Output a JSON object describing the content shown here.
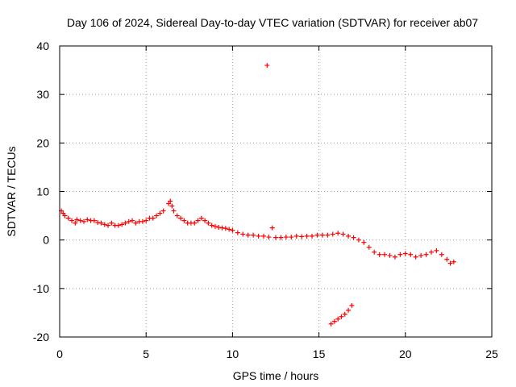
{
  "chart_data": {
    "type": "scatter",
    "title": "Day 106 of 2024, Sidereal Day-to-day VTEC variation (SDTVAR) for receiver ab07",
    "xlabel": "GPS time / hours",
    "ylabel": "SDTVAR / TECUs",
    "xlim": [
      0,
      25
    ],
    "ylim": [
      -20,
      40
    ],
    "x_ticks": [
      0,
      5,
      10,
      15,
      20,
      25
    ],
    "y_ticks": [
      -20,
      -10,
      0,
      10,
      20,
      30,
      40
    ],
    "grid": true,
    "legend": "none",
    "marker": "+",
    "series": [
      {
        "name": "SDTVAR",
        "color": "#ff0000",
        "points": [
          [
            0.1,
            6.0
          ],
          [
            0.2,
            5.5
          ],
          [
            0.3,
            5.0
          ],
          [
            0.5,
            4.5
          ],
          [
            0.7,
            4.0
          ],
          [
            0.9,
            3.5
          ],
          [
            1.0,
            4.2
          ],
          [
            1.2,
            4.0
          ],
          [
            1.4,
            3.8
          ],
          [
            1.6,
            4.2
          ],
          [
            1.8,
            4.0
          ],
          [
            2.0,
            4.0
          ],
          [
            2.2,
            3.6
          ],
          [
            2.4,
            3.5
          ],
          [
            2.6,
            3.2
          ],
          [
            2.8,
            3.0
          ],
          [
            3.0,
            3.5
          ],
          [
            3.2,
            3.0
          ],
          [
            3.4,
            3.0
          ],
          [
            3.6,
            3.2
          ],
          [
            3.8,
            3.5
          ],
          [
            4.0,
            3.8
          ],
          [
            4.2,
            4.0
          ],
          [
            4.4,
            3.5
          ],
          [
            4.6,
            3.8
          ],
          [
            4.8,
            3.8
          ],
          [
            5.0,
            4.0
          ],
          [
            5.2,
            4.5
          ],
          [
            5.4,
            4.5
          ],
          [
            5.6,
            5.0
          ],
          [
            5.8,
            5.5
          ],
          [
            6.0,
            6.0
          ],
          [
            6.3,
            7.5
          ],
          [
            6.4,
            8.0
          ],
          [
            6.5,
            7.0
          ],
          [
            6.6,
            6.0
          ],
          [
            6.8,
            5.0
          ],
          [
            7.0,
            4.5
          ],
          [
            7.2,
            4.0
          ],
          [
            7.4,
            3.5
          ],
          [
            7.6,
            3.5
          ],
          [
            7.8,
            3.5
          ],
          [
            8.0,
            4.0
          ],
          [
            8.2,
            4.5
          ],
          [
            8.4,
            4.0
          ],
          [
            8.6,
            3.5
          ],
          [
            8.8,
            3.0
          ],
          [
            9.0,
            2.8
          ],
          [
            9.2,
            2.6
          ],
          [
            9.4,
            2.5
          ],
          [
            9.6,
            2.4
          ],
          [
            9.8,
            2.2
          ],
          [
            10.0,
            2.0
          ],
          [
            10.3,
            1.5
          ],
          [
            10.6,
            1.2
          ],
          [
            10.9,
            1.0
          ],
          [
            11.2,
            1.0
          ],
          [
            11.5,
            0.8
          ],
          [
            11.8,
            0.8
          ],
          [
            12.0,
            36.0
          ],
          [
            12.1,
            0.6
          ],
          [
            12.3,
            2.5
          ],
          [
            12.5,
            0.5
          ],
          [
            12.8,
            0.5
          ],
          [
            13.1,
            0.6
          ],
          [
            13.4,
            0.6
          ],
          [
            13.7,
            0.8
          ],
          [
            14.0,
            0.7
          ],
          [
            14.3,
            0.8
          ],
          [
            14.6,
            0.8
          ],
          [
            14.9,
            1.0
          ],
          [
            15.2,
            1.0
          ],
          [
            15.5,
            1.0
          ],
          [
            15.8,
            1.2
          ],
          [
            16.1,
            1.4
          ],
          [
            16.4,
            1.2
          ],
          [
            16.7,
            0.8
          ],
          [
            17.0,
            0.5
          ],
          [
            17.3,
            0.0
          ],
          [
            17.6,
            -0.5
          ],
          [
            17.9,
            -1.5
          ],
          [
            18.2,
            -2.5
          ],
          [
            18.5,
            -3.0
          ],
          [
            18.8,
            -3.0
          ],
          [
            19.1,
            -3.2
          ],
          [
            19.4,
            -3.5
          ],
          [
            19.7,
            -3.0
          ],
          [
            20.0,
            -2.8
          ],
          [
            20.3,
            -3.0
          ],
          [
            20.6,
            -3.5
          ],
          [
            20.9,
            -3.2
          ],
          [
            21.2,
            -3.0
          ],
          [
            21.5,
            -2.5
          ],
          [
            21.8,
            -2.2
          ],
          [
            22.1,
            -3.0
          ],
          [
            22.4,
            -4.0
          ],
          [
            22.6,
            -4.8
          ],
          [
            22.8,
            -4.5
          ],
          [
            15.7,
            -17.3
          ],
          [
            15.9,
            -16.8
          ],
          [
            16.1,
            -16.3
          ],
          [
            16.3,
            -15.8
          ],
          [
            16.5,
            -15.3
          ],
          [
            16.7,
            -14.5
          ],
          [
            16.9,
            -13.5
          ]
        ]
      }
    ]
  }
}
